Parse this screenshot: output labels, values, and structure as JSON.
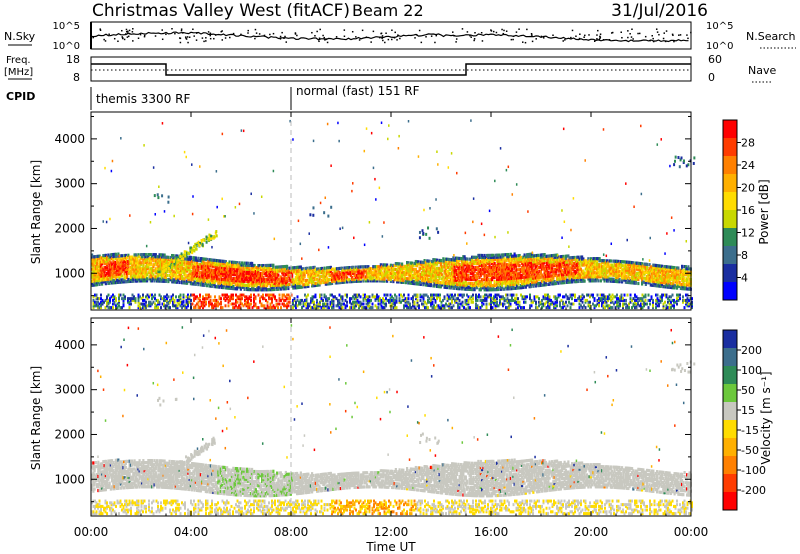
{
  "header": {
    "station": "Christmas Valley West (fitACF)",
    "beam": "Beam 22",
    "date": "31/Jul/2016"
  },
  "summary_panels": {
    "nsky": {
      "label": "N.Sky",
      "scale_left_top": "10^5",
      "scale_left_bottom": "10^0",
      "scale_right_top": "10^5",
      "scale_right_bottom": "10^0",
      "right_label": "N.Search"
    },
    "freq": {
      "label_line1": "Freq.",
      "label_line2": "[MHz]",
      "left_ticks": [
        "18",
        "8"
      ],
      "right_ticks": [
        "60",
        "0"
      ],
      "right_label": "Nave"
    },
    "cpid": {
      "label": "CPID",
      "segments": [
        {
          "label": "themis 3300 RF",
          "start_hour": 0
        },
        {
          "label": "normal (fast) 151 RF",
          "start_hour": 8
        }
      ]
    }
  },
  "chart_data": [
    {
      "type": "heatmap",
      "name": "power",
      "ylabel": "Slant Range [km]",
      "xlabel": "Time UT",
      "x_range_hours": [
        0,
        24
      ],
      "y_range_km": [
        180,
        4600
      ],
      "y_ticks": [
        1000,
        2000,
        3000,
        4000
      ],
      "x_tick_labels": [
        "00:00",
        "04:00",
        "08:00",
        "12:00",
        "16:00",
        "20:00",
        "00:00"
      ],
      "colorbar": {
        "label": "Power [dB]",
        "ticks": [
          "28",
          "24",
          "20",
          "16",
          "12",
          "8",
          "4"
        ],
        "colors": [
          "#ff0000",
          "#ff3c00",
          "#ff8000",
          "#ffb000",
          "#ffdc00",
          "#c8d800",
          "#2e8b57",
          "#3c6e8c",
          "#1a2ea0",
          "#0000ff"
        ]
      }
    },
    {
      "type": "heatmap",
      "name": "velocity",
      "ylabel": "Slant Range [km]",
      "xlabel": "Time UT",
      "x_range_hours": [
        0,
        24
      ],
      "y_range_km": [
        180,
        4600
      ],
      "y_ticks": [
        1000,
        2000,
        3000,
        4000
      ],
      "x_tick_labels": [
        "00:00",
        "04:00",
        "08:00",
        "12:00",
        "16:00",
        "20:00",
        "00:00"
      ],
      "colorbar": {
        "label": "Velocity [m s⁻¹]",
        "ticks": [
          "200",
          "100",
          "50",
          "15",
          "-15",
          "-50",
          "-100",
          "-200"
        ],
        "colors": [
          "#1a2ea0",
          "#3c6e8c",
          "#2e8b57",
          "#6cc83c",
          "#c8c8c0",
          "#ffdc00",
          "#ffb000",
          "#ff8000",
          "#ff3c00",
          "#ff0000"
        ]
      }
    }
  ],
  "xaxis": {
    "label": "Time UT"
  }
}
